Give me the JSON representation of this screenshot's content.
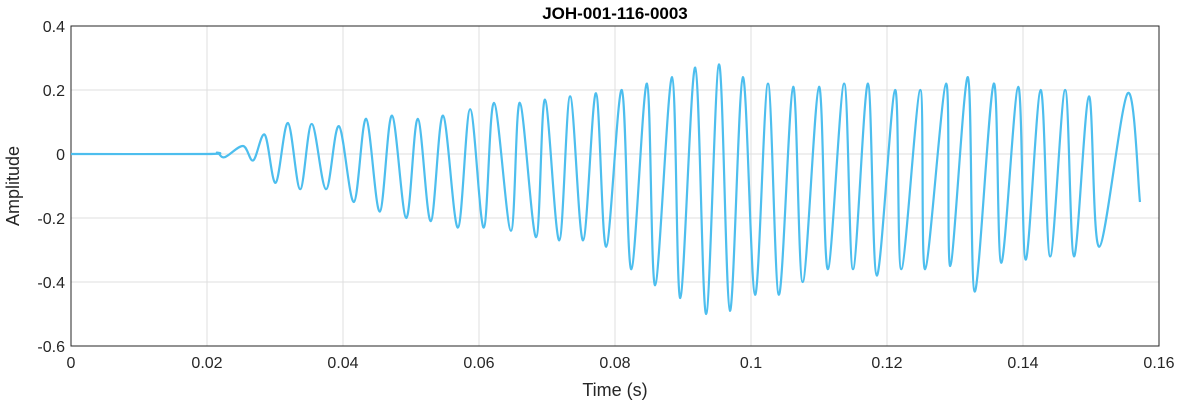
{
  "chart_data": {
    "type": "line",
    "title": "JOH-001-116-0003",
    "xlabel": "Time (s)",
    "ylabel": "Amplitude",
    "xlim": [
      0,
      0.16
    ],
    "ylim": [
      -0.6,
      0.4
    ],
    "grid": true,
    "x_ticks": [
      0,
      0.02,
      0.04,
      0.06,
      0.08,
      0.1,
      0.12,
      0.14,
      0.16
    ],
    "x_tick_labels": [
      "0",
      "0.02",
      "0.04",
      "0.06",
      "0.08",
      "0.1",
      "0.12",
      "0.14",
      "0.16"
    ],
    "y_ticks": [
      0.4,
      0.2,
      0,
      -0.2,
      -0.4,
      -0.6
    ],
    "y_tick_labels": [
      "0.4",
      "0.2",
      "0",
      "-0.2",
      "-0.4",
      "-0.6"
    ],
    "series": [
      {
        "name": "Amplitude",
        "color": "#4DBEEE",
        "points": [
          [
            0,
            0
          ],
          [
            0.02,
            0
          ],
          [
            0.0215,
            0.004
          ],
          [
            0.0226,
            -0.01
          ],
          [
            0.0253,
            0.025
          ],
          [
            0.0268,
            -0.02
          ],
          [
            0.0285,
            0.06
          ],
          [
            0.0301,
            -0.09
          ],
          [
            0.0319,
            0.097
          ],
          [
            0.0337,
            -0.11
          ],
          [
            0.0354,
            0.094
          ],
          [
            0.0375,
            -0.11
          ],
          [
            0.0394,
            0.087
          ],
          [
            0.0416,
            -0.15
          ],
          [
            0.0434,
            0.11
          ],
          [
            0.0454,
            -0.18
          ],
          [
            0.0472,
            0.12
          ],
          [
            0.0493,
            -0.2
          ],
          [
            0.051,
            0.11
          ],
          [
            0.0529,
            -0.21
          ],
          [
            0.0547,
            0.12
          ],
          [
            0.0569,
            -0.23
          ],
          [
            0.0587,
            0.14
          ],
          [
            0.0607,
            -0.23
          ],
          [
            0.0622,
            0.16
          ],
          [
            0.0647,
            -0.24
          ],
          [
            0.066,
            0.16
          ],
          [
            0.0684,
            -0.26
          ],
          [
            0.0697,
            0.17
          ],
          [
            0.0718,
            -0.27
          ],
          [
            0.0734,
            0.18
          ],
          [
            0.0753,
            -0.27
          ],
          [
            0.0772,
            0.19
          ],
          [
            0.0787,
            -0.29
          ],
          [
            0.081,
            0.2
          ],
          [
            0.0824,
            -0.36
          ],
          [
            0.0847,
            0.22
          ],
          [
            0.0859,
            -0.41
          ],
          [
            0.0884,
            0.24
          ],
          [
            0.0896,
            -0.45
          ],
          [
            0.0918,
            0.27
          ],
          [
            0.0934,
            -0.5
          ],
          [
            0.0953,
            0.28
          ],
          [
            0.0969,
            -0.49
          ],
          [
            0.0988,
            0.24
          ],
          [
            0.1006,
            -0.44
          ],
          [
            0.1025,
            0.22
          ],
          [
            0.1041,
            -0.44
          ],
          [
            0.1062,
            0.21
          ],
          [
            0.1076,
            -0.4
          ],
          [
            0.11,
            0.21
          ],
          [
            0.1113,
            -0.36
          ],
          [
            0.1137,
            0.22
          ],
          [
            0.115,
            -0.36
          ],
          [
            0.1172,
            0.22
          ],
          [
            0.1185,
            -0.38
          ],
          [
            0.1212,
            0.2
          ],
          [
            0.1221,
            -0.36
          ],
          [
            0.1249,
            0.2
          ],
          [
            0.1256,
            -0.36
          ],
          [
            0.1287,
            0.22
          ],
          [
            0.1293,
            -0.35
          ],
          [
            0.1319,
            0.24
          ],
          [
            0.1329,
            -0.43
          ],
          [
            0.1357,
            0.22
          ],
          [
            0.1368,
            -0.34
          ],
          [
            0.1393,
            0.21
          ],
          [
            0.1404,
            -0.33
          ],
          [
            0.1426,
            0.2
          ],
          [
            0.144,
            -0.32
          ],
          [
            0.1462,
            0.2
          ],
          [
            0.1475,
            -0.32
          ],
          [
            0.1497,
            0.18
          ],
          [
            0.1512,
            -0.29
          ],
          [
            0.1554,
            0.19
          ],
          [
            0.1572,
            -0.15
          ]
        ]
      }
    ]
  }
}
